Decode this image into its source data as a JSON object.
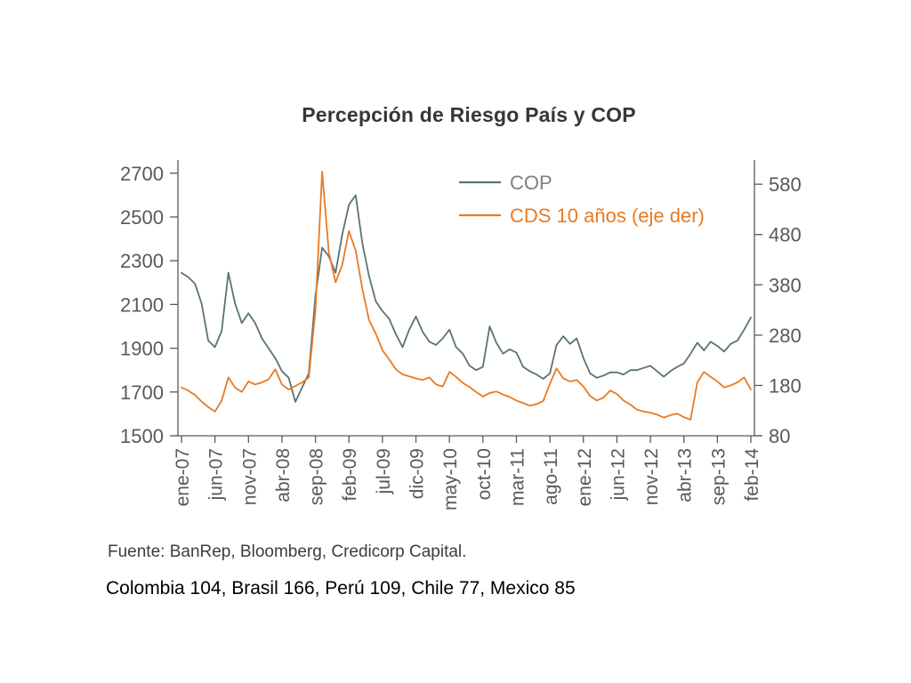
{
  "title": "Percepción de Riesgo País y COP",
  "source": "Fuente:  BanRep, Bloomberg, Credicorp Capital.",
  "footnote": "Colombia 104, Brasil 166, Perú 109, Chile 77, Mexico 85",
  "colors": {
    "axis": "#595959",
    "tick_label": "#595959",
    "title": "#363636",
    "cop_line": "#5a7370",
    "cds_line": "#e87a22",
    "cop_legend_text": "#808080",
    "cds_legend_text": "#e87a22"
  },
  "chart_data": {
    "type": "line",
    "title": "Percepción de Riesgo País y COP",
    "grid": false,
    "legend_position": "top-right-inside",
    "left_axis": {
      "ticks": [
        2700,
        2500,
        2300,
        2100,
        1900,
        1700,
        1500
      ],
      "range": [
        1500,
        2760
      ]
    },
    "right_axis": {
      "ticks": [
        580,
        480,
        380,
        280,
        180,
        80
      ],
      "range": [
        80,
        628
      ]
    },
    "x_ticks": [
      {
        "label": "ene-07",
        "index": 0
      },
      {
        "label": "jun-07",
        "index": 5
      },
      {
        "label": "nov-07",
        "index": 10
      },
      {
        "label": "abr-08",
        "index": 15
      },
      {
        "label": "sep-08",
        "index": 20
      },
      {
        "label": "feb-09",
        "index": 25
      },
      {
        "label": "jul-09",
        "index": 30
      },
      {
        "label": "dic-09",
        "index": 35
      },
      {
        "label": "may-10",
        "index": 40
      },
      {
        "label": "oct-10",
        "index": 45
      },
      {
        "label": "mar-11",
        "index": 50
      },
      {
        "label": "ago-11",
        "index": 55
      },
      {
        "label": "ene-12",
        "index": 60
      },
      {
        "label": "jun-12",
        "index": 65
      },
      {
        "label": "nov-12",
        "index": 70
      },
      {
        "label": "abr-13",
        "index": 75
      },
      {
        "label": "sep-13",
        "index": 80
      },
      {
        "label": "feb-14",
        "index": 85
      }
    ],
    "series": [
      {
        "name": "COP",
        "axis": "left",
        "color": "#5a7370",
        "legend_color": "#808080",
        "values": [
          2245,
          2225,
          2195,
          2105,
          1935,
          1905,
          1980,
          2245,
          2105,
          2015,
          2060,
          2015,
          1945,
          1900,
          1855,
          1795,
          1765,
          1655,
          1720,
          1785,
          2140,
          2360,
          2320,
          2245,
          2420,
          2555,
          2600,
          2380,
          2230,
          2115,
          2070,
          2035,
          1965,
          1905,
          1985,
          2045,
          1975,
          1930,
          1915,
          1945,
          1985,
          1905,
          1875,
          1820,
          1800,
          1815,
          2000,
          1925,
          1875,
          1895,
          1880,
          1815,
          1795,
          1780,
          1760,
          1785,
          1915,
          1955,
          1920,
          1945,
          1855,
          1785,
          1765,
          1775,
          1790,
          1790,
          1780,
          1800,
          1800,
          1810,
          1820,
          1795,
          1770,
          1795,
          1815,
          1830,
          1875,
          1925,
          1890,
          1930,
          1910,
          1885,
          1920,
          1935,
          1985,
          2040
        ]
      },
      {
        "name": "CDS 10 años (eje der)",
        "axis": "right",
        "color": "#e87a22",
        "legend_color": "#e87a22",
        "values": [
          176,
          170,
          161,
          148,
          137,
          128,
          150,
          196,
          176,
          167,
          188,
          182,
          186,
          192,
          212,
          182,
          172,
          179,
          186,
          196,
          330,
          605,
          445,
          385,
          420,
          487,
          448,
          372,
          310,
          283,
          250,
          232,
          212,
          202,
          198,
          194,
          191,
          196,
          182,
          178,
          207,
          197,
          185,
          177,
          167,
          158,
          165,
          168,
          162,
          157,
          150,
          145,
          140,
          143,
          149,
          183,
          214,
          194,
          188,
          191,
          178,
          159,
          150,
          156,
          170,
          163,
          150,
          142,
          132,
          128,
          126,
          122,
          116,
          121,
          124,
          117,
          112,
          186,
          207,
          197,
          188,
          176,
          180,
          186,
          196,
          172
        ]
      }
    ]
  }
}
